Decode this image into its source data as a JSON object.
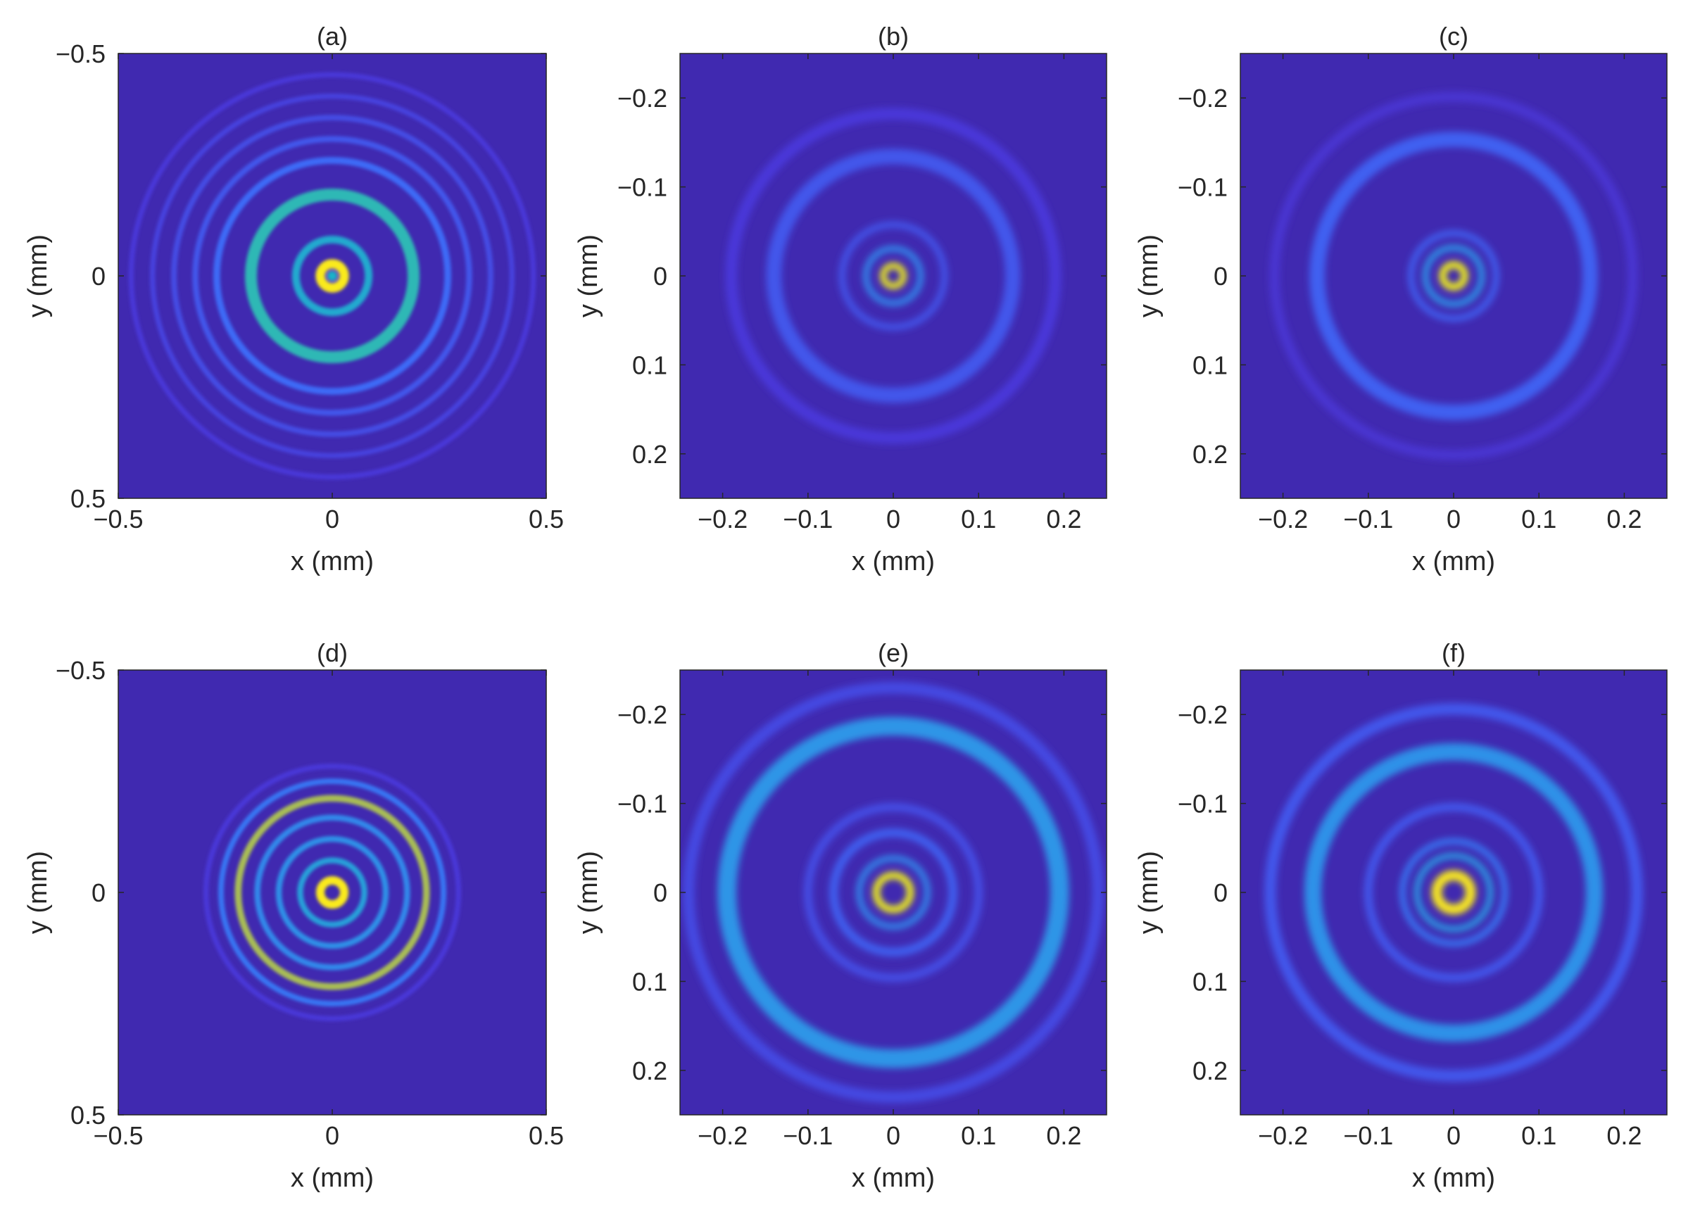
{
  "colormap": [
    "#3e26a8",
    "#4a35d6",
    "#3d6cf8",
    "#2d96e6",
    "#1eb0c9",
    "#3bbfa0",
    "#85c26b",
    "#cfba3e",
    "#fbd62a",
    "#f9fb15"
  ],
  "frame_color": "#262626",
  "chart_data": [
    {
      "type": "heatmap",
      "title": "(a)",
      "xlabel": "x (mm)",
      "ylabel": "y (mm)",
      "xlim": [
        -0.5,
        0.5
      ],
      "ylim": [
        -0.5,
        0.5
      ],
      "y_direction": "down",
      "xticks": [
        -0.5,
        0,
        0.5
      ],
      "xtick_labels": [
        "−0.5",
        "0",
        "0.5"
      ],
      "yticks": [
        -0.5,
        0,
        0.5
      ],
      "ytick_labels": [
        "−0.5",
        "0",
        "0.5"
      ],
      "grid": false,
      "intensity_rings": [
        {
          "radius_mm": 0.0,
          "width_mm": 0.012,
          "intensity": 0.45
        },
        {
          "radius_mm": 0.028,
          "width_mm": 0.022,
          "intensity": 0.95
        },
        {
          "radius_mm": 0.085,
          "width_mm": 0.018,
          "intensity": 0.42
        },
        {
          "radius_mm": 0.19,
          "width_mm": 0.028,
          "intensity": 0.5
        },
        {
          "radius_mm": 0.27,
          "width_mm": 0.016,
          "intensity": 0.22
        },
        {
          "radius_mm": 0.32,
          "width_mm": 0.014,
          "intensity": 0.18
        },
        {
          "radius_mm": 0.37,
          "width_mm": 0.013,
          "intensity": 0.16
        },
        {
          "radius_mm": 0.42,
          "width_mm": 0.012,
          "intensity": 0.14
        },
        {
          "radius_mm": 0.47,
          "width_mm": 0.012,
          "intensity": 0.12
        }
      ]
    },
    {
      "type": "heatmap",
      "title": "(b)",
      "xlabel": "x (mm)",
      "ylabel": "y (mm)",
      "xlim": [
        -0.25,
        0.25
      ],
      "ylim": [
        -0.25,
        0.25
      ],
      "y_direction": "down",
      "xticks": [
        -0.2,
        -0.1,
        0,
        0.1,
        0.2
      ],
      "xtick_labels": [
        "−0.2",
        "−0.1",
        "0",
        "0.1",
        "0.2"
      ],
      "yticks": [
        -0.2,
        -0.1,
        0,
        0.1,
        0.2
      ],
      "ytick_labels": [
        "−0.2",
        "−0.1",
        "0",
        "0.1",
        "0.2"
      ],
      "grid": false,
      "intensity_rings": [
        {
          "radius_mm": 0.012,
          "width_mm": 0.007,
          "intensity": 1.0
        },
        {
          "radius_mm": 0.032,
          "width_mm": 0.007,
          "intensity": 0.3
        },
        {
          "radius_mm": 0.06,
          "width_mm": 0.008,
          "intensity": 0.17
        },
        {
          "radius_mm": 0.14,
          "width_mm": 0.018,
          "intensity": 0.18
        },
        {
          "radius_mm": 0.19,
          "width_mm": 0.014,
          "intensity": 0.12
        }
      ]
    },
    {
      "type": "heatmap",
      "title": "(c)",
      "xlabel": "x (mm)",
      "ylabel": "y (mm)",
      "xlim": [
        -0.25,
        0.25
      ],
      "ylim": [
        -0.25,
        0.25
      ],
      "y_direction": "down",
      "xticks": [
        -0.2,
        -0.1,
        0,
        0.1,
        0.2
      ],
      "xtick_labels": [
        "−0.2",
        "−0.1",
        "0",
        "0.1",
        "0.2"
      ],
      "yticks": [
        -0.2,
        -0.1,
        0,
        0.1,
        0.2
      ],
      "ytick_labels": [
        "−0.2",
        "−0.1",
        "0",
        "0.1",
        "0.2"
      ],
      "grid": false,
      "intensity_rings": [
        {
          "radius_mm": 0.013,
          "width_mm": 0.008,
          "intensity": 1.0
        },
        {
          "radius_mm": 0.033,
          "width_mm": 0.007,
          "intensity": 0.33
        },
        {
          "radius_mm": 0.05,
          "width_mm": 0.007,
          "intensity": 0.2
        },
        {
          "radius_mm": 0.16,
          "width_mm": 0.018,
          "intensity": 0.2
        },
        {
          "radius_mm": 0.21,
          "width_mm": 0.012,
          "intensity": 0.1
        }
      ]
    },
    {
      "type": "heatmap",
      "title": "(d)",
      "xlabel": "x (mm)",
      "ylabel": "y (mm)",
      "xlim": [
        -0.5,
        0.5
      ],
      "ylim": [
        -0.5,
        0.5
      ],
      "y_direction": "down",
      "xticks": [
        -0.5,
        0,
        0.5
      ],
      "xtick_labels": [
        "−0.5",
        "0",
        "0.5"
      ],
      "yticks": [
        -0.5,
        0,
        0.5
      ],
      "ytick_labels": [
        "−0.5",
        "0",
        "0.5"
      ],
      "grid": false,
      "intensity_rings": [
        {
          "radius_mm": 0.028,
          "width_mm": 0.02,
          "intensity": 0.95
        },
        {
          "radius_mm": 0.075,
          "width_mm": 0.014,
          "intensity": 0.38
        },
        {
          "radius_mm": 0.125,
          "width_mm": 0.014,
          "intensity": 0.32
        },
        {
          "radius_mm": 0.175,
          "width_mm": 0.014,
          "intensity": 0.3
        },
        {
          "radius_mm": 0.22,
          "width_mm": 0.016,
          "intensity": 0.72
        },
        {
          "radius_mm": 0.26,
          "width_mm": 0.013,
          "intensity": 0.25
        },
        {
          "radius_mm": 0.295,
          "width_mm": 0.012,
          "intensity": 0.12
        }
      ]
    },
    {
      "type": "heatmap",
      "title": "(e)",
      "xlabel": "x (mm)",
      "ylabel": "y (mm)",
      "xlim": [
        -0.25,
        0.25
      ],
      "ylim": [
        -0.25,
        0.25
      ],
      "y_direction": "down",
      "xticks": [
        -0.2,
        -0.1,
        0,
        0.1,
        0.2
      ],
      "xtick_labels": [
        "−0.2",
        "−0.1",
        "0",
        "0.1",
        "0.2"
      ],
      "yticks": [
        -0.2,
        -0.1,
        0,
        0.1,
        0.2
      ],
      "ytick_labels": [
        "−0.2",
        "−0.1",
        "0",
        "0.1",
        "0.2"
      ],
      "grid": false,
      "intensity_rings": [
        {
          "radius_mm": 0.02,
          "width_mm": 0.008,
          "intensity": 1.0
        },
        {
          "radius_mm": 0.04,
          "width_mm": 0.007,
          "intensity": 0.3
        },
        {
          "radius_mm": 0.07,
          "width_mm": 0.01,
          "intensity": 0.2
        },
        {
          "radius_mm": 0.1,
          "width_mm": 0.01,
          "intensity": 0.16
        },
        {
          "radius_mm": 0.195,
          "width_mm": 0.022,
          "intensity": 0.33
        },
        {
          "radius_mm": 0.24,
          "width_mm": 0.014,
          "intensity": 0.15
        }
      ]
    },
    {
      "type": "heatmap",
      "title": "(f)",
      "xlabel": "x (mm)",
      "ylabel": "y (mm)",
      "xlim": [
        -0.25,
        0.25
      ],
      "ylim": [
        -0.25,
        0.25
      ],
      "y_direction": "down",
      "xticks": [
        -0.2,
        -0.1,
        0,
        0.1,
        0.2
      ],
      "xtick_labels": [
        "−0.2",
        "−0.1",
        "0",
        "0.1",
        "0.2"
      ],
      "yticks": [
        -0.2,
        -0.1,
        0,
        0.1,
        0.2
      ],
      "ytick_labels": [
        "−0.2",
        "−0.1",
        "0",
        "0.1",
        "0.2"
      ],
      "grid": false,
      "intensity_rings": [
        {
          "radius_mm": 0.02,
          "width_mm": 0.012,
          "intensity": 0.95
        },
        {
          "radius_mm": 0.043,
          "width_mm": 0.007,
          "intensity": 0.35
        },
        {
          "radius_mm": 0.06,
          "width_mm": 0.007,
          "intensity": 0.25
        },
        {
          "radius_mm": 0.1,
          "width_mm": 0.01,
          "intensity": 0.18
        },
        {
          "radius_mm": 0.165,
          "width_mm": 0.02,
          "intensity": 0.32
        },
        {
          "radius_mm": 0.215,
          "width_mm": 0.014,
          "intensity": 0.18
        }
      ]
    }
  ]
}
